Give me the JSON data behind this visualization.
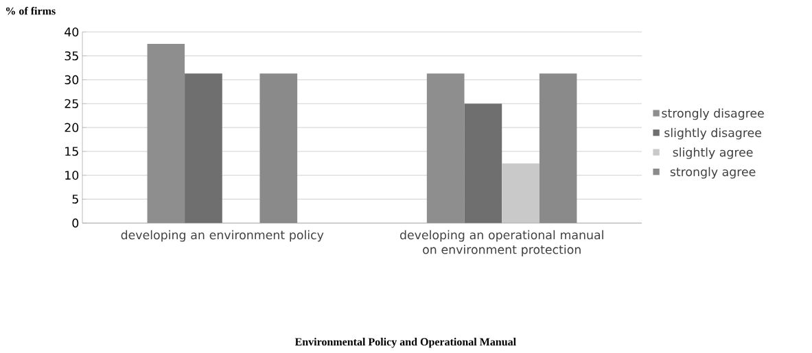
{
  "chart_data": {
    "type": "bar",
    "title": "Environmental Policy and Operational Manual",
    "ylabel": "% of firms",
    "categories": [
      "developing an environment policy",
      "developing an operational manual on environment protection"
    ],
    "series": [
      {
        "name": "strongly disagree",
        "color": "#8e8e8e",
        "values": [
          37.5,
          31.3
        ]
      },
      {
        "name": "slightly disagree",
        "color": "#6f6f6f",
        "values": [
          31.3,
          25
        ]
      },
      {
        "name": "slightly agree",
        "color": "#c9c9c9",
        "values": [
          0,
          12.5
        ]
      },
      {
        "name": "strongly agree",
        "color": "#8a8a8a",
        "values": [
          31.3,
          31.3
        ]
      }
    ],
    "ylim": [
      0,
      40
    ],
    "yticks": [
      0,
      5,
      10,
      15,
      20,
      25,
      30,
      35,
      40
    ],
    "grid": "y",
    "legend": "right"
  }
}
